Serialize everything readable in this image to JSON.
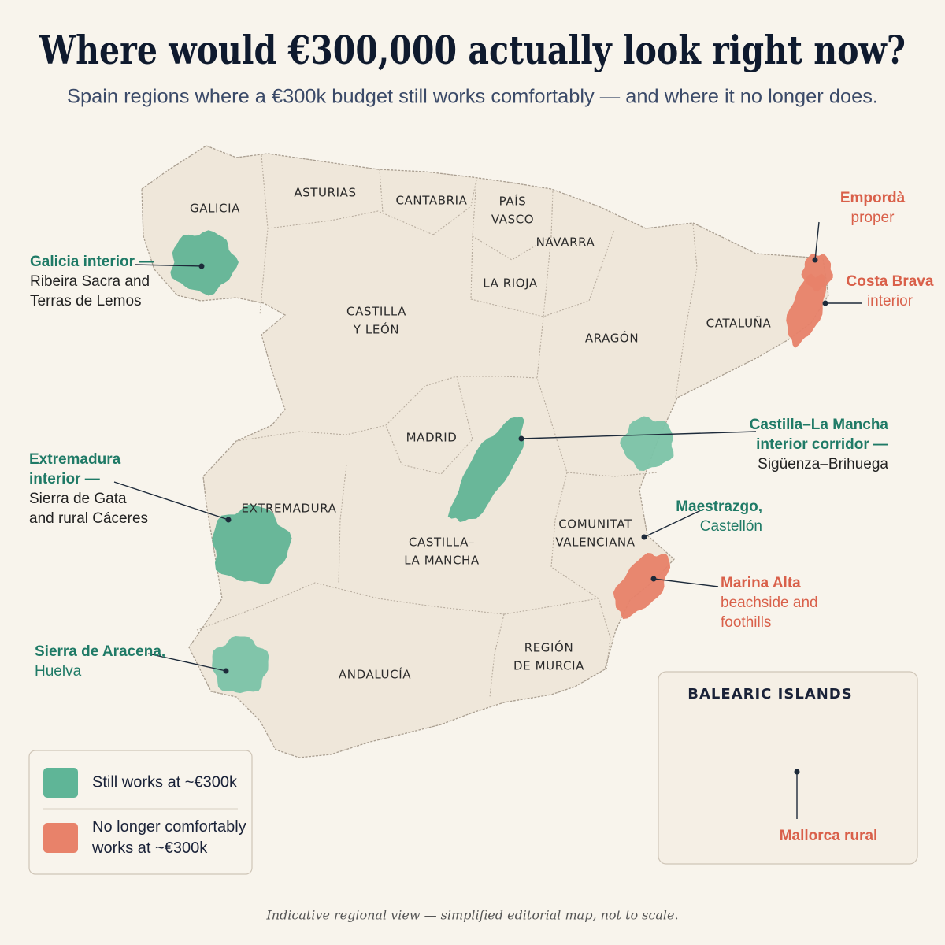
{
  "title": "Where would €300,000 actually look right now?",
  "subtitle": "Spain regions where a €300k budget still works comfortably — and where it no longer does.",
  "regions": [
    {
      "lines": [
        "GALICIA"
      ]
    },
    {
      "lines": [
        "ASTURIAS"
      ]
    },
    {
      "lines": [
        "CANTABRIA"
      ]
    },
    {
      "lines": [
        "PAÍS",
        "VASCO"
      ]
    },
    {
      "lines": [
        "NAVARRA"
      ]
    },
    {
      "lines": [
        "LA RIOJA"
      ]
    },
    {
      "lines": [
        "CASTILLA",
        "Y LEÓN"
      ]
    },
    {
      "lines": [
        "ARAGÓN"
      ]
    },
    {
      "lines": [
        "CATALUÑA"
      ]
    },
    {
      "lines": [
        "MADRID"
      ]
    },
    {
      "lines": [
        "EXTREMADURA"
      ]
    },
    {
      "lines": [
        "CASTILLA–",
        "LA MANCHA"
      ]
    },
    {
      "lines": [
        "COMUNITAT",
        "VALENCIANA"
      ]
    },
    {
      "lines": [
        "REGIÓN",
        "DE MURCIA"
      ]
    },
    {
      "lines": [
        "ANDALUCÍA"
      ]
    }
  ],
  "callouts": [
    {
      "heading": [
        "Galicia interior —"
      ],
      "detail": [
        "Ribeira Sacra and",
        "Terras de Lemos"
      ],
      "color": "#1f7a66",
      "detail_color": "#222222",
      "fill": "#62b596"
    },
    {
      "heading": [
        "Extremadura",
        "interior —"
      ],
      "detail": [
        "Sierra de Gata",
        "and rural Cáceres"
      ],
      "color": "#1f7a66",
      "detail_color": "#222222",
      "fill": "#62b596"
    },
    {
      "heading": [
        "Sierra de Aracena,"
      ],
      "detail": [
        "Huelva"
      ],
      "color": "#1f7a66",
      "detail_color": "#1f7a66",
      "fill": "#7cc4a8"
    },
    {
      "heading": [
        "Castilla–La Mancha",
        "interior corridor —"
      ],
      "detail": [
        "Sigüenza–Brihuega"
      ],
      "color": "#1f7a66",
      "detail_color": "#222222",
      "fill": "#62b596"
    },
    {
      "heading": [
        "Maestrazgo,"
      ],
      "detail": [
        "Castellón"
      ],
      "color": "#1f7a66",
      "detail_color": "#1f7a66",
      "fill": "#7cc4a8"
    },
    {
      "heading": [
        "Empordà"
      ],
      "detail": [
        "proper"
      ],
      "color": "#d9604a",
      "detail_color": "#d9604a",
      "fill": "#e8826a"
    },
    {
      "heading": [
        "Costa Brava"
      ],
      "detail": [
        "interior"
      ],
      "color": "#d9604a",
      "detail_color": "#d9604a",
      "fill": "#e8826a"
    },
    {
      "heading": [
        "Marina Alta"
      ],
      "detail": [
        "beachside and",
        "foothills"
      ],
      "color": "#d9604a",
      "detail_color": "#d9604a",
      "fill": "#e8826a"
    },
    {
      "heading": [
        "Mallorca rural"
      ],
      "color": "#d9604a",
      "fill": "#e8826a"
    }
  ],
  "legend": [
    {
      "color": "#5fb597",
      "label": [
        "Still works at ~€300k"
      ]
    },
    {
      "color": "#e8826a",
      "label": [
        "No longer comfortably",
        "works at ~€300k"
      ]
    }
  ],
  "inset": {
    "title": "BALEARIC ISLANDS"
  },
  "footnote": "Indicative regional view — simplified editorial map, not to scale."
}
